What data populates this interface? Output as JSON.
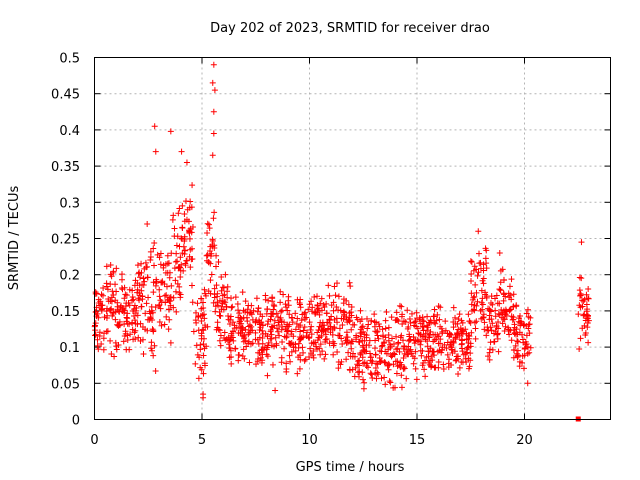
{
  "chart_data": {
    "type": "scatter",
    "title": "Day 202 of 2023, SRMTID for receiver drao",
    "xlabel": "GPS time / hours",
    "ylabel": "SRMTID / TECUs",
    "xlim": [
      0,
      24
    ],
    "ylim": [
      0,
      0.5
    ],
    "x_ticks": [
      0,
      5,
      10,
      15,
      20
    ],
    "x_tick_labels": [
      "0",
      "5",
      "10",
      "15",
      "20"
    ],
    "y_ticks": [
      0,
      0.05,
      0.1,
      0.15,
      0.2,
      0.25,
      0.3,
      0.35,
      0.4,
      0.45,
      0.5
    ],
    "y_tick_labels": [
      "0",
      "0.05",
      "0.1",
      "0.15",
      "0.2",
      "0.25",
      "0.3",
      "0.35",
      "0.4",
      "0.45",
      "0.5"
    ],
    "grid": true,
    "marker": "+",
    "marker_color": "#ff0000",
    "series": [
      {
        "name": "SRMTID",
        "envelope": [
          {
            "x_range": [
              0.0,
              0.5
            ],
            "y_range": [
              0.09,
              0.2
            ]
          },
          {
            "x_range": [
              0.5,
              1.2
            ],
            "y_range": [
              0.07,
              0.23
            ]
          },
          {
            "x_range": [
              1.2,
              2.0
            ],
            "y_range": [
              0.09,
              0.21
            ]
          },
          {
            "x_range": [
              2.0,
              2.6
            ],
            "y_range": [
              0.08,
              0.25
            ]
          },
          {
            "x_range": [
              2.6,
              3.0
            ],
            "y_range": [
              0.06,
              0.27
            ]
          },
          {
            "x_range": [
              3.0,
              3.6
            ],
            "y_range": [
              0.1,
              0.26
            ]
          },
          {
            "x_range": [
              3.6,
              4.1
            ],
            "y_range": [
              0.12,
              0.33
            ]
          },
          {
            "x_range": [
              4.1,
              4.6
            ],
            "y_range": [
              0.15,
              0.34
            ]
          },
          {
            "x_range": [
              4.6,
              5.2
            ],
            "y_range": [
              0.05,
              0.2
            ]
          },
          {
            "x_range": [
              5.2,
              5.7
            ],
            "y_range": [
              0.1,
              0.3
            ]
          },
          {
            "x_range": [
              5.7,
              6.2
            ],
            "y_range": [
              0.09,
              0.22
            ]
          },
          {
            "x_range": [
              6.2,
              7.5
            ],
            "y_range": [
              0.07,
              0.18
            ]
          },
          {
            "x_range": [
              7.5,
              9.5
            ],
            "y_range": [
              0.05,
              0.19
            ]
          },
          {
            "x_range": [
              9.5,
              10.5
            ],
            "y_range": [
              0.06,
              0.18
            ]
          },
          {
            "x_range": [
              10.5,
              12.0
            ],
            "y_range": [
              0.06,
              0.2
            ]
          },
          {
            "x_range": [
              12.0,
              14.5
            ],
            "y_range": [
              0.04,
              0.16
            ]
          },
          {
            "x_range": [
              14.5,
              16.0
            ],
            "y_range": [
              0.05,
              0.17
            ]
          },
          {
            "x_range": [
              16.0,
              17.5
            ],
            "y_range": [
              0.06,
              0.16
            ]
          },
          {
            "x_range": [
              17.5,
              18.3
            ],
            "y_range": [
              0.1,
              0.25
            ]
          },
          {
            "x_range": [
              18.3,
              18.8
            ],
            "y_range": [
              0.08,
              0.18
            ]
          },
          {
            "x_range": [
              18.8,
              19.5
            ],
            "y_range": [
              0.1,
              0.22
            ]
          },
          {
            "x_range": [
              19.5,
              20.3
            ],
            "y_range": [
              0.06,
              0.17
            ]
          },
          {
            "x_range": [
              22.5,
              23.0
            ],
            "y_range": [
              0.08,
              0.21
            ]
          }
        ],
        "peaks": [
          {
            "x": 2.45,
            "y": 0.27
          },
          {
            "x": 2.8,
            "y": 0.405
          },
          {
            "x": 2.85,
            "y": 0.37
          },
          {
            "x": 3.55,
            "y": 0.398
          },
          {
            "x": 4.05,
            "y": 0.37
          },
          {
            "x": 4.3,
            "y": 0.355
          },
          {
            "x": 5.05,
            "y": 0.035
          },
          {
            "x": 5.05,
            "y": 0.03
          },
          {
            "x": 5.55,
            "y": 0.49
          },
          {
            "x": 5.5,
            "y": 0.465
          },
          {
            "x": 5.6,
            "y": 0.455
          },
          {
            "x": 5.55,
            "y": 0.425
          },
          {
            "x": 5.55,
            "y": 0.395
          },
          {
            "x": 5.5,
            "y": 0.365
          },
          {
            "x": 8.4,
            "y": 0.04
          },
          {
            "x": 17.85,
            "y": 0.26
          },
          {
            "x": 18.85,
            "y": 0.23
          },
          {
            "x": 20.15,
            "y": 0.05
          },
          {
            "x": 22.65,
            "y": 0.245
          },
          {
            "x": 22.5,
            "y": 0.0
          }
        ]
      }
    ]
  }
}
